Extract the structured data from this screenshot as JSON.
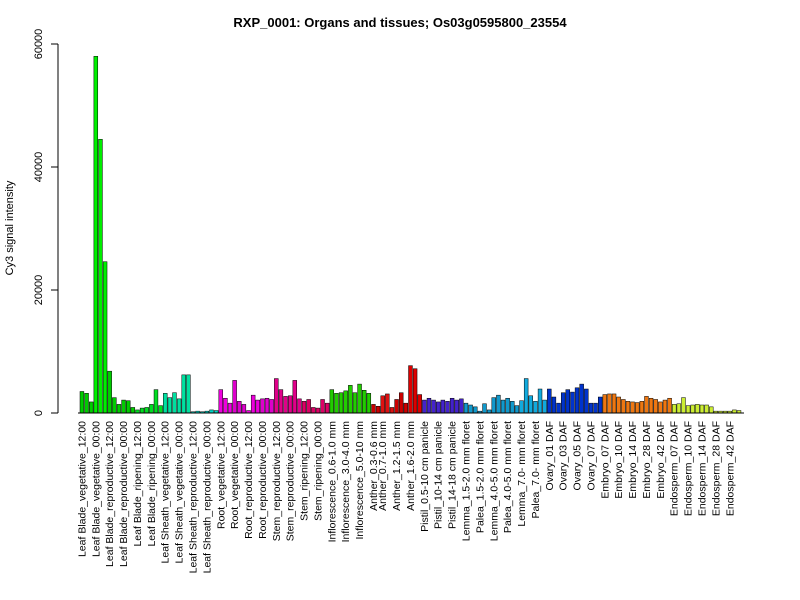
{
  "chart_data": {
    "type": "bar",
    "title": "RXP_0001: Organs and tissues; Os03g0595800_23554",
    "ylabel": "Cy3 signal intensity",
    "xlabel": "",
    "ylim": [
      0,
      60000
    ],
    "yticks": [
      0,
      20000,
      40000,
      60000
    ],
    "grid": false,
    "legend": "none",
    "groups": [
      {
        "label": "Leaf Blade_vegetative_12:00",
        "color": "#00cc00",
        "values": [
          3500,
          3200,
          1800
        ]
      },
      {
        "label": "Leaf Blade_vegetative_00:00",
        "color": "#00ee00",
        "values": [
          58000,
          44500,
          24600
        ]
      },
      {
        "label": "Leaf Blade_reproductive_12:00",
        "color": "#00cc00",
        "values": [
          6800,
          2500,
          1400
        ]
      },
      {
        "label": "Leaf Blade_reproductive_00:00",
        "color": "#00cc00",
        "values": [
          2100,
          2000,
          900
        ]
      },
      {
        "label": "Leaf Blade_ripening_12:00",
        "color": "#00dd22",
        "values": [
          500,
          800,
          900
        ]
      },
      {
        "label": "Leaf Blade_ripening_00:00",
        "color": "#00dd22",
        "values": [
          1400,
          3800,
          1200
        ]
      },
      {
        "label": "Leaf Sheath_vegetative_12:00",
        "color": "#00e0a0",
        "values": [
          3200,
          2500,
          3300
        ]
      },
      {
        "label": "Leaf Sheath_vegetative_00:00",
        "color": "#00e0a0",
        "values": [
          2300,
          6200,
          6200
        ]
      },
      {
        "label": "Leaf Sheath_reproductive_12:00",
        "color": "#00d8c8",
        "values": [
          200,
          300,
          200
        ]
      },
      {
        "label": "Leaf Sheath_reproductive_00:00",
        "color": "#00d8c8",
        "values": [
          300,
          500,
          400
        ]
      },
      {
        "label": "Root_vegetative_12:00",
        "color": "#ee00dd",
        "values": [
          3800,
          2400,
          1600
        ]
      },
      {
        "label": "Root_vegetative_00:00",
        "color": "#dd00cc",
        "values": [
          5300,
          1900,
          1400
        ]
      },
      {
        "label": "Root_reproductive_12:00",
        "color": "#ee00dd",
        "values": [
          400,
          2900,
          2100
        ]
      },
      {
        "label": "Root_reproductive_00:00",
        "color": "#dd00cc",
        "values": [
          2300,
          2400,
          2200
        ]
      },
      {
        "label": "Stem_reproductive_12:00",
        "color": "#e0008a",
        "values": [
          5600,
          3800,
          2700
        ]
      },
      {
        "label": "Stem_reproductive_00:00",
        "color": "#e0008a",
        "values": [
          2800,
          5300,
          2300
        ]
      },
      {
        "label": "Stem_ripening_12:00",
        "color": "#dd0066",
        "values": [
          1900,
          2200,
          900
        ]
      },
      {
        "label": "Stem_ripening_00:00",
        "color": "#dd0066",
        "values": [
          800,
          2200,
          1600
        ]
      },
      {
        "label": "Inflorescence_0.6-1.0 mm",
        "color": "#22cc00",
        "values": [
          3800,
          3200,
          3300
        ]
      },
      {
        "label": "Inflorescence_3.0-4.0 mm",
        "color": "#22cc00",
        "values": [
          3600,
          4500,
          3300
        ]
      },
      {
        "label": "Inflorescence_5.0-10 mm",
        "color": "#22cc00",
        "values": [
          4700,
          3700,
          3200
        ]
      },
      {
        "label": "Anther_0.3-0.6 mm",
        "color": "#cc0000",
        "values": [
          1400,
          1100
        ]
      },
      {
        "label": "Anther_0.7-1.0 mm",
        "color": "#dd1111",
        "values": [
          2800,
          3100,
          900
        ]
      },
      {
        "label": "Anther_1.2-1.5 mm",
        "color": "#cc0000",
        "values": [
          2200,
          3300,
          1600
        ]
      },
      {
        "label": "Anther_1.6-2.0 mm",
        "color": "#dd0000",
        "values": [
          7700,
          7200,
          3000
        ]
      },
      {
        "label": "Pistil_0.5-10 cm panicle",
        "color": "#4422cc",
        "values": [
          2100,
          2400,
          2100
        ]
      },
      {
        "label": "Pistil_10-14 cm panicle",
        "color": "#4422cc",
        "values": [
          1800,
          2100,
          1900
        ]
      },
      {
        "label": "Pistil_14-18 cm panicle",
        "color": "#4422cc",
        "values": [
          2400,
          2100,
          2300
        ]
      },
      {
        "label": "Lemma_1.5-2.0 mm floret",
        "color": "#1199cc",
        "values": [
          1600,
          1300,
          1000
        ]
      },
      {
        "label": "Palea_1.5-2.0 mm floret",
        "color": "#1199cc",
        "values": [
          300,
          1500,
          500
        ]
      },
      {
        "label": "Lemma_4.0-5.0 mm floret",
        "color": "#1199cc",
        "values": [
          2500,
          2900,
          2100
        ]
      },
      {
        "label": "Palea_4.0-5.0 mm floret",
        "color": "#1199cc",
        "values": [
          2400,
          1900,
          1200
        ]
      },
      {
        "label": "Lemma_7.0- mm floret",
        "color": "#11aadd",
        "values": [
          2000,
          5600,
          2800
        ]
      },
      {
        "label": "Palea_7.0- mm floret",
        "color": "#11aadd",
        "values": [
          1900,
          3900,
          2100
        ]
      },
      {
        "label": "Ovary_01 DAF",
        "color": "#0033cc",
        "values": [
          3900,
          2600,
          1600
        ]
      },
      {
        "label": "Ovary_03 DAF",
        "color": "#0033cc",
        "values": [
          3300,
          3800,
          3400
        ]
      },
      {
        "label": "Ovary_05 DAF",
        "color": "#0033cc",
        "values": [
          4100,
          4700,
          3900
        ]
      },
      {
        "label": "Ovary_07 DAF",
        "color": "#0033cc",
        "values": [
          1600,
          1600,
          2600
        ]
      },
      {
        "label": "Embryo_07 DAF",
        "color": "#ee7711",
        "values": [
          3000,
          3100,
          3100
        ]
      },
      {
        "label": "Embryo_10 DAF",
        "color": "#ee7711",
        "values": [
          2600,
          2200,
          1900
        ]
      },
      {
        "label": "Embryo_14 DAF",
        "color": "#ee7711",
        "values": [
          1800,
          1700,
          1900
        ]
      },
      {
        "label": "Embryo_28 DAF",
        "color": "#ee7711",
        "values": [
          2700,
          2400,
          2200
        ]
      },
      {
        "label": "Embryo_42 DAF",
        "color": "#ee7711",
        "values": [
          1800,
          2100,
          2400
        ]
      },
      {
        "label": "Endosperm_07 DAF",
        "color": "#ccee33",
        "values": [
          1400,
          1500,
          2500
        ]
      },
      {
        "label": "Endosperm_10 DAF",
        "color": "#ccee33",
        "values": [
          1200,
          1300,
          1400
        ]
      },
      {
        "label": "Endosperm_14 DAF",
        "color": "#ccee33",
        "values": [
          1300,
          1300,
          1000
        ]
      },
      {
        "label": "Endosperm_28 DAF",
        "color": "#ccee33",
        "values": [
          300,
          300,
          300
        ]
      },
      {
        "label": "Endosperm_42 DAF",
        "color": "#ccee33",
        "values": [
          300,
          500,
          400
        ]
      }
    ]
  }
}
